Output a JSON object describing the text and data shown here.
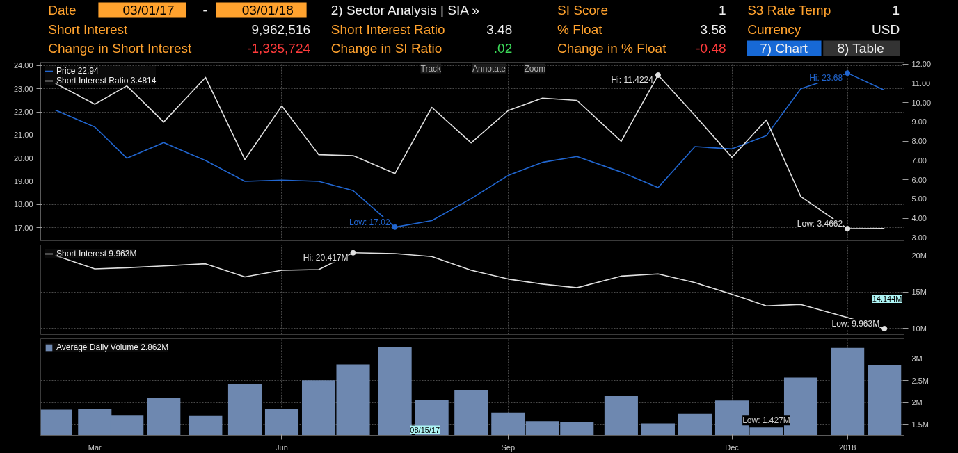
{
  "chart_data": [
    {
      "type": "other",
      "annotations": [
        "Date",
        "03/01/17",
        "-",
        "03/01/18",
        "2) Sector Analysis | SIA »",
        "SI Score",
        "1",
        "S3 Rate Temp",
        "1",
        "Short Interest",
        "9,962,516",
        "Short Interest Ratio",
        "3.48",
        "% Float",
        "3.58",
        "Currency",
        "USD",
        "Change in Short Interest",
        "-1,335,724",
        "Change in SI Ratio",
        ".02",
        "Change in % Float",
        "-0.48",
        "7) Chart",
        "8) Table"
      ]
    },
    {
      "type": "line",
      "x": [
        "2017-03-15",
        "2017-03-31",
        "2017-04-13",
        "2017-04-28",
        "2017-05-15",
        "2017-05-31",
        "2017-06-15",
        "2017-06-30",
        "2017-07-14",
        "2017-07-31",
        "2017-08-15",
        "2017-08-31",
        "2017-09-15",
        "2017-09-29",
        "2017-10-13",
        "2017-10-31",
        "2017-11-15",
        "2017-11-30",
        "2017-12-15",
        "2017-12-29",
        "2018-01-12",
        "2018-01-31",
        "2018-02-15"
      ],
      "xlim": [
        "2017-03-09",
        "2018-02-23"
      ],
      "xticks": [
        {
          "value": "2017-03-31",
          "label": null
        },
        {
          "value": "2017-06-15",
          "label": null
        },
        {
          "value": "2017-09-15",
          "label": null
        },
        {
          "value": "2017-12-15",
          "label": null
        },
        {
          "value": "2018-01-31",
          "label": null
        }
      ],
      "tick_labels": "y",
      "ylim": [
        16.43,
        24.15
      ],
      "yticks": [
        {
          "value": 17,
          "label": "17.00"
        },
        {
          "value": 18,
          "label": "18.00"
        },
        {
          "value": 19,
          "label": "19.00"
        },
        {
          "value": 20,
          "label": "20.00"
        },
        {
          "value": 21,
          "label": "21.00"
        },
        {
          "value": 22,
          "label": "22.00"
        },
        {
          "value": 23,
          "label": "23.00"
        },
        {
          "value": 24,
          "label": "24.00"
        }
      ],
      "y2lim": [
        2.84,
        12.09
      ],
      "y2ticks": [
        {
          "value": 3,
          "label": "3.00"
        },
        {
          "value": 4,
          "label": "4.00"
        },
        {
          "value": 5,
          "label": "5.00"
        },
        {
          "value": 6,
          "label": "6.00"
        },
        {
          "value": 7,
          "label": "7.00"
        },
        {
          "value": 8,
          "label": "8.00"
        },
        {
          "value": 9,
          "label": "9.00"
        },
        {
          "value": 10,
          "label": "10.00"
        },
        {
          "value": 11,
          "label": "11.00"
        },
        {
          "value": 12,
          "label": "12.00"
        }
      ],
      "grid": true,
      "legend": "top left",
      "marker": "none",
      "line_style": "solid",
      "series": [
        {
          "name": "Price 22.94",
          "color": "#2166d0",
          "values": [
            22.08,
            21.35,
            20.0,
            20.67,
            19.9,
            19.0,
            19.05,
            19.0,
            18.6,
            17.02,
            17.3,
            18.25,
            19.25,
            19.82,
            20.07,
            19.4,
            18.73,
            20.5,
            20.4,
            20.97,
            23.0,
            23.68,
            22.94
          ],
          "value_labels": [
            null,
            null,
            null,
            null,
            null,
            null,
            null,
            null,
            null,
            "Low: 17.02",
            null,
            null,
            null,
            null,
            null,
            null,
            null,
            null,
            null,
            null,
            null,
            "Hi: 23.68",
            null
          ]
        },
        {
          "name": "Short Interest Ratio 3.4814",
          "color": "#e0e0e0",
          "axis": "y2",
          "values": [
            10.99,
            9.91,
            10.86,
            8.99,
            11.3,
            7.05,
            9.82,
            7.3,
            7.25,
            6.32,
            9.75,
            7.91,
            9.58,
            10.23,
            10.11,
            7.99,
            11.4224,
            9.33,
            7.16,
            9.1,
            5.13,
            3.4662,
            3.4814
          ],
          "value_labels": [
            null,
            null,
            null,
            null,
            null,
            null,
            null,
            null,
            null,
            null,
            null,
            null,
            null,
            null,
            null,
            null,
            "Hi: 11.4224",
            null,
            null,
            null,
            null,
            "Low: 3.4662",
            null
          ]
        }
      ],
      "annotations": [
        "Track",
        "Annotate",
        "Zoom"
      ]
    },
    {
      "type": "line",
      "x": [
        "2017-03-15",
        "2017-03-31",
        "2017-04-13",
        "2017-04-28",
        "2017-05-15",
        "2017-05-31",
        "2017-06-15",
        "2017-06-30",
        "2017-07-14",
        "2017-07-31",
        "2017-08-15",
        "2017-08-31",
        "2017-09-15",
        "2017-09-29",
        "2017-10-13",
        "2017-10-31",
        "2017-11-15",
        "2017-11-30",
        "2017-12-15",
        "2017-12-29",
        "2018-01-12",
        "2018-01-31",
        "2018-02-15"
      ],
      "xlim": [
        "2017-03-09",
        "2018-02-23"
      ],
      "xticks": [
        {
          "value": "2017-03-31",
          "label": null
        },
        {
          "value": "2017-06-15",
          "label": null
        },
        {
          "value": "2017-09-15",
          "label": null
        },
        {
          "value": "2017-12-15",
          "label": null
        },
        {
          "value": "2018-01-31",
          "label": null
        }
      ],
      "tick_labels": "y",
      "ylim": [
        9.15,
        21.5
      ],
      "yticks": [
        {
          "value": 10,
          "label": "10M"
        },
        {
          "value": 15,
          "label": "15M"
        },
        {
          "value": 20,
          "label": "20M"
        }
      ],
      "grid": true,
      "legend": "top left",
      "marker": "none",
      "line_style": "solid",
      "series": [
        {
          "name": "Short Interest 9.963M",
          "color": "#e0e0e0",
          "values": [
            20.05,
            18.2,
            18.35,
            18.6,
            18.9,
            17.1,
            18.0,
            18.1,
            20.417,
            20.3,
            19.9,
            18.0,
            16.8,
            16.1,
            15.6,
            17.2,
            17.5,
            16.3,
            14.7,
            13.1,
            13.3,
            11.5,
            9.963
          ],
          "value_labels": [
            null,
            null,
            null,
            null,
            null,
            null,
            null,
            null,
            "Hi: 20.417M",
            null,
            null,
            null,
            null,
            null,
            null,
            null,
            null,
            null,
            null,
            null,
            null,
            null,
            "Low: 9.963M"
          ]
        }
      ],
      "annotations": [
        "14.144M"
      ]
    },
    {
      "type": "bar",
      "x": [
        "2017-03-15",
        "2017-03-31",
        "2017-04-13",
        "2017-04-28",
        "2017-05-15",
        "2017-05-31",
        "2017-06-15",
        "2017-06-30",
        "2017-07-14",
        "2017-07-31",
        "2017-08-15",
        "2017-08-31",
        "2017-09-15",
        "2017-09-29",
        "2017-10-13",
        "2017-10-31",
        "2017-11-15",
        "2017-11-30",
        "2017-12-15",
        "2017-12-29",
        "2018-01-12",
        "2018-01-31",
        "2018-02-15"
      ],
      "xlim": [
        "2017-03-09",
        "2018-02-23"
      ],
      "xticks": [
        {
          "value": "2017-03-31",
          "label": "Mar"
        },
        {
          "value": "2017-06-15",
          "label": "Jun"
        },
        {
          "value": "2017-09-15",
          "label": "Sep"
        },
        {
          "value": "2017-12-15",
          "label": "Dec"
        },
        {
          "value": "2018-01-31",
          "label": "2018"
        }
      ],
      "ylim": [
        1.25,
        3.46
      ],
      "yticks": [
        {
          "value": 1.5,
          "label": "1.5M"
        },
        {
          "value": 2,
          "label": "2M"
        },
        {
          "value": 2.5,
          "label": "2.5M"
        },
        {
          "value": 3,
          "label": "3M"
        }
      ],
      "grid": true,
      "legend": "top left",
      "series": [
        {
          "name": "Average Daily Volume 2.862M",
          "color": "#6e88b0",
          "values": [
            1.84,
            1.85,
            1.7,
            2.1,
            1.69,
            2.43,
            1.85,
            2.51,
            2.87,
            3.27,
            2.07,
            2.28,
            1.77,
            1.57,
            1.56,
            2.15,
            1.52,
            1.74,
            2.05,
            1.427,
            2.57,
            3.25,
            2.862
          ],
          "value_labels": [
            null,
            null,
            null,
            null,
            null,
            null,
            null,
            null,
            null,
            null,
            null,
            null,
            null,
            null,
            null,
            null,
            null,
            null,
            null,
            "Low: 1.427M",
            null,
            null,
            null
          ]
        }
      ],
      "annotations": [
        "08/15/17"
      ]
    }
  ]
}
